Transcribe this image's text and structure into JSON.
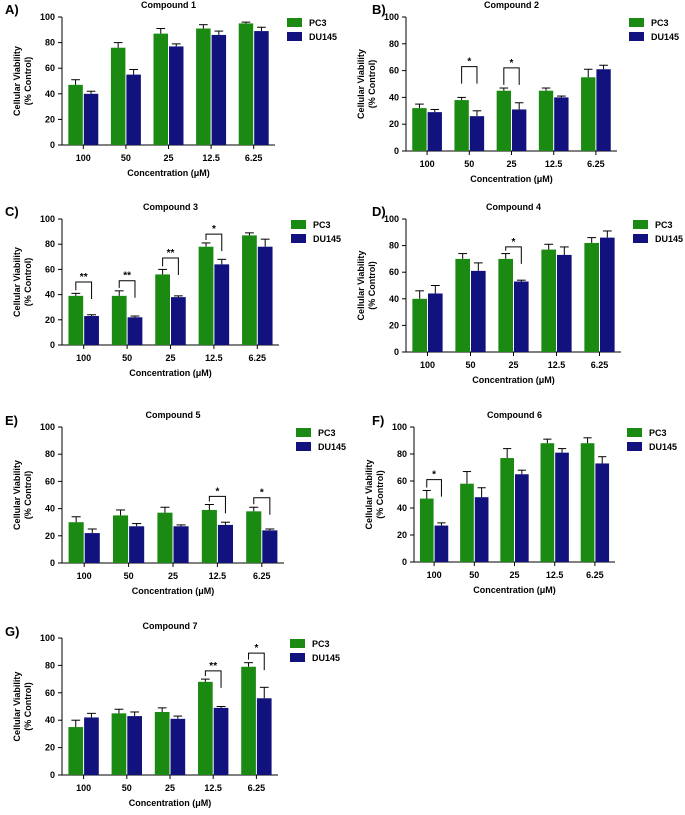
{
  "colors": {
    "PC3": "#1a8a12",
    "DU145": "#12127e"
  },
  "chart_data": [
    {
      "type": "bar",
      "panel": "A)",
      "title": "Compound 1",
      "categories": [
        "100",
        "50",
        "25",
        "12.5",
        "6.25"
      ],
      "xlabel": "Concentration (μM)",
      "ylabel": [
        "Cellular Viability",
        "(% Control)"
      ],
      "ylim": [
        0,
        100
      ],
      "yticks": [
        "0",
        "20",
        "40",
        "60",
        "80",
        "100"
      ],
      "series": [
        {
          "name": "PC3",
          "values": [
            47,
            76,
            87,
            91,
            95
          ],
          "errors": [
            4,
            4,
            4,
            3,
            1
          ]
        },
        {
          "name": "DU145",
          "values": [
            40,
            55,
            77,
            86,
            89
          ],
          "errors": [
            2,
            4,
            2,
            3,
            3
          ]
        }
      ],
      "significance": []
    },
    {
      "type": "bar",
      "panel": "B)",
      "title": "Compound 2",
      "categories": [
        "100",
        "50",
        "25",
        "12.5",
        "6.25"
      ],
      "xlabel": "Concentration (μM)",
      "ylabel": [
        "Cellular Viability",
        "(% Control)"
      ],
      "ylim": [
        0,
        100
      ],
      "yticks": [
        "0",
        "20",
        "40",
        "60",
        "80",
        "100"
      ],
      "series": [
        {
          "name": "PC3",
          "values": [
            32,
            38,
            45,
            45,
            55
          ],
          "errors": [
            3,
            2,
            2,
            2,
            6
          ]
        },
        {
          "name": "DU145",
          "values": [
            29,
            26,
            31,
            40,
            61
          ],
          "errors": [
            2,
            4,
            5,
            1,
            3
          ]
        }
      ],
      "significance": [
        {
          "category": 1,
          "label": "*",
          "y": 63
        },
        {
          "category": 2,
          "label": "*",
          "y": 62
        }
      ]
    },
    {
      "type": "bar",
      "panel": "C)",
      "title": "Compound 3",
      "categories": [
        "100",
        "50",
        "25",
        "12.5",
        "6.25"
      ],
      "xlabel": "Concentration (μM)",
      "ylabel": [
        "Cellular Viability",
        "(% Control)"
      ],
      "ylim": [
        0,
        100
      ],
      "yticks": [
        "0",
        "20",
        "40",
        "60",
        "80",
        "100"
      ],
      "series": [
        {
          "name": "PC3",
          "values": [
            39,
            39,
            56,
            78,
            87
          ],
          "errors": [
            2,
            4,
            4,
            3,
            2
          ]
        },
        {
          "name": "DU145",
          "values": [
            23,
            22,
            38,
            64,
            78
          ],
          "errors": [
            1,
            1,
            1,
            4,
            6
          ]
        }
      ],
      "significance": [
        {
          "category": 0,
          "label": "**",
          "y": 50
        },
        {
          "category": 1,
          "label": "**",
          "y": 51
        },
        {
          "category": 2,
          "label": "**",
          "y": 69
        },
        {
          "category": 3,
          "label": "*",
          "y": 88
        }
      ]
    },
    {
      "type": "bar",
      "panel": "D)",
      "title": "Compound 4",
      "categories": [
        "100",
        "50",
        "25",
        "12.5",
        "6.25"
      ],
      "xlabel": "Concentration (μM)",
      "ylabel": [
        "Cellular Viability",
        "(% Control)"
      ],
      "ylim": [
        0,
        100
      ],
      "yticks": [
        "0",
        "20",
        "40",
        "60",
        "80",
        "100"
      ],
      "series": [
        {
          "name": "PC3",
          "values": [
            40,
            70,
            70,
            77,
            82
          ],
          "errors": [
            6,
            4,
            4,
            4,
            4
          ]
        },
        {
          "name": "DU145",
          "values": [
            44,
            61,
            53,
            73,
            86
          ],
          "errors": [
            6,
            6,
            1,
            6,
            5
          ]
        }
      ],
      "significance": [
        {
          "category": 2,
          "label": "*",
          "y": 79
        }
      ]
    },
    {
      "type": "bar",
      "panel": "E)",
      "title": "Compound 5",
      "categories": [
        "100",
        "50",
        "25",
        "12.5",
        "6.25"
      ],
      "xlabel": "Concentration (μM)",
      "ylabel": [
        "Cellular Viability",
        "(% Control)"
      ],
      "ylim": [
        0,
        100
      ],
      "yticks": [
        "0",
        "20",
        "40",
        "60",
        "80",
        "100"
      ],
      "series": [
        {
          "name": "PC3",
          "values": [
            30,
            35,
            37,
            39,
            38
          ],
          "errors": [
            4,
            4,
            4,
            4,
            3
          ]
        },
        {
          "name": "DU145",
          "values": [
            22,
            27,
            27,
            28,
            24
          ],
          "errors": [
            3,
            2,
            1,
            2,
            1
          ]
        }
      ],
      "significance": [
        {
          "category": 3,
          "label": "*",
          "y": 49
        },
        {
          "category": 4,
          "label": "*",
          "y": 48
        }
      ]
    },
    {
      "type": "bar",
      "panel": "F)",
      "title": "Compound 6",
      "categories": [
        "100",
        "50",
        "25",
        "12.5",
        "6.25"
      ],
      "xlabel": "Concentration (μM)",
      "ylabel": [
        "Cellular Viability",
        "(% Control)"
      ],
      "ylim": [
        0,
        100
      ],
      "yticks": [
        "0",
        "20",
        "40",
        "60",
        "80",
        "100"
      ],
      "series": [
        {
          "name": "PC3",
          "values": [
            47,
            58,
            77,
            88,
            88
          ],
          "errors": [
            6,
            9,
            7,
            3,
            4
          ]
        },
        {
          "name": "DU145",
          "values": [
            27,
            48,
            65,
            81,
            73
          ],
          "errors": [
            2,
            7,
            3,
            3,
            5
          ]
        }
      ],
      "significance": [
        {
          "category": 0,
          "label": "*",
          "y": 61
        }
      ]
    },
    {
      "type": "bar",
      "panel": "G)",
      "title": "Compound 7",
      "categories": [
        "100",
        "50",
        "25",
        "12.5",
        "6.25"
      ],
      "xlabel": "Concentration (μM)",
      "ylabel": [
        "Cellular Viability",
        "(% Control)"
      ],
      "ylim": [
        0,
        100
      ],
      "yticks": [
        "0",
        "20",
        "40",
        "60",
        "80",
        "100"
      ],
      "series": [
        {
          "name": "PC3",
          "values": [
            35,
            45,
            46,
            68,
            79
          ],
          "errors": [
            5,
            3,
            3,
            2,
            3
          ]
        },
        {
          "name": "DU145",
          "values": [
            42,
            43,
            41,
            49,
            56
          ],
          "errors": [
            3,
            3,
            2,
            1,
            8
          ]
        }
      ],
      "significance": [
        {
          "category": 3,
          "label": "**",
          "y": 76
        },
        {
          "category": 4,
          "label": "*",
          "y": 89
        }
      ]
    }
  ]
}
